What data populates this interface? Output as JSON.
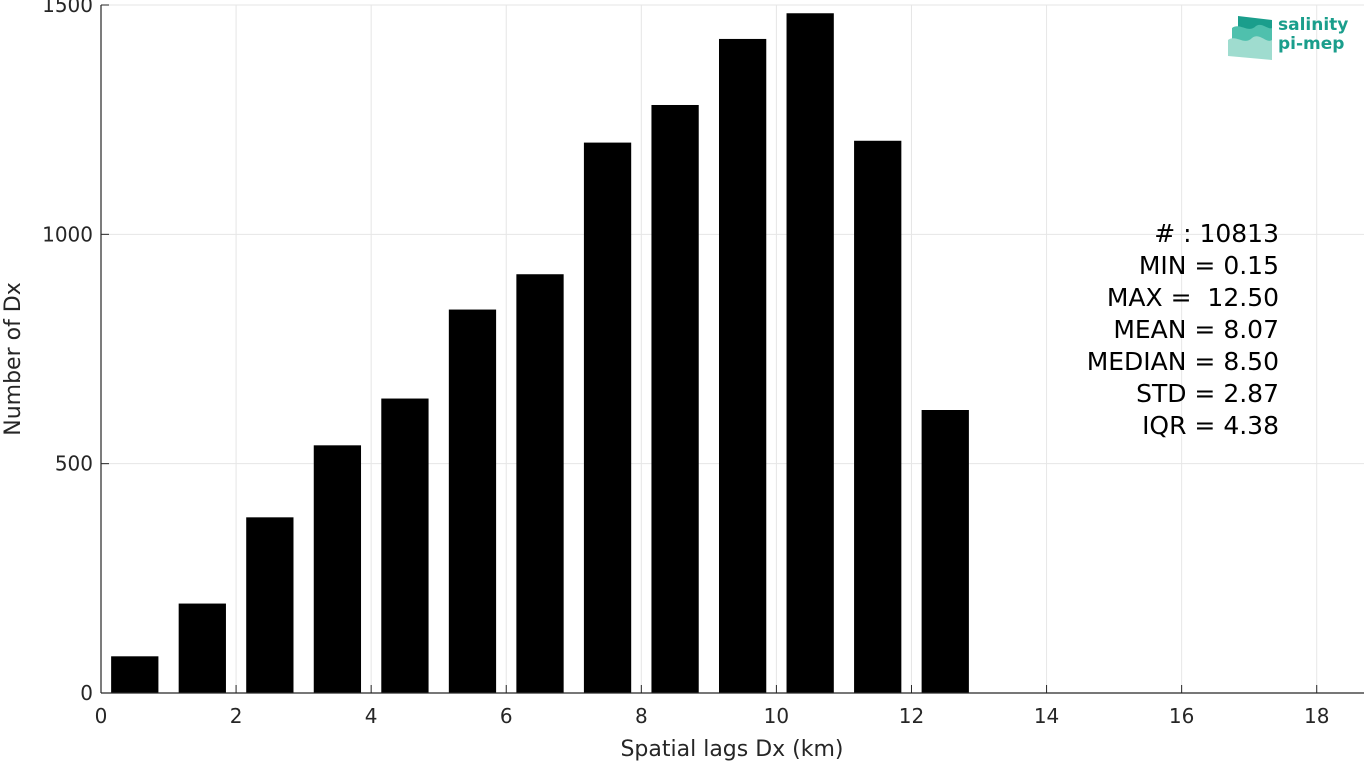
{
  "chart_data": {
    "type": "bar",
    "title": "",
    "xlabel": "Spatial lags Dx (km)",
    "ylabel": "Number of Dx",
    "xlim": [
      0,
      18.7
    ],
    "ylim": [
      0,
      1500
    ],
    "xticks": [
      0,
      2,
      4,
      6,
      8,
      10,
      12,
      14,
      16,
      18
    ],
    "yticks": [
      0,
      500,
      1000,
      1500
    ],
    "grid": true,
    "bar_color": "#000000",
    "x": [
      0.5,
      1.5,
      2.5,
      3.5,
      4.5,
      5.5,
      6.5,
      7.5,
      8.5,
      9.5,
      10.5,
      11.5,
      12.5
    ],
    "values": [
      80,
      195,
      383,
      540,
      642,
      836,
      913,
      1200,
      1282,
      1426,
      1482,
      1204,
      617
    ]
  },
  "stats": {
    "count": "# : 10813",
    "min": "MIN = 0.15",
    "max": "MAX =  12.50",
    "mean": "MEAN = 8.07",
    "median": "MEDIAN = 8.50",
    "std": "STD = 2.87",
    "iqr": "IQR = 4.38"
  },
  "logo": {
    "line1": "salinity",
    "line2": "pi-mep",
    "color": "#1a9e8c"
  }
}
